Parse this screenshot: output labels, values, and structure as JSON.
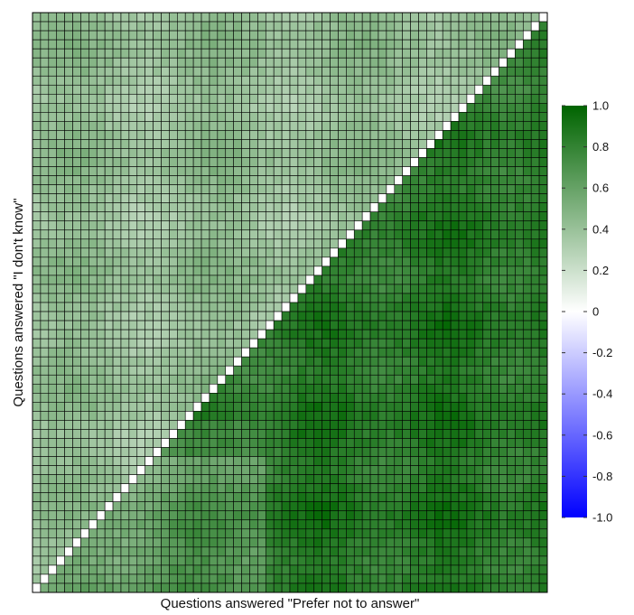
{
  "chart_data": {
    "type": "heatmap",
    "title": "",
    "xlabel": "Questions answered \"Prefer not to answer\"",
    "ylabel": "Questions answered \"I don't know\"",
    "n_rows": 64,
    "n_cols": 64,
    "diagonal_value": 0,
    "upper_triangle": {
      "description_value": "weak positive correlation",
      "typical_value": 0.4,
      "range": [
        0.2,
        0.55
      ]
    },
    "lower_triangle": {
      "typical_value": 0.85,
      "range": [
        0.45,
        1.0
      ]
    },
    "colorbar": {
      "min": -1.0,
      "max": 1.0,
      "ticks": [
        1.0,
        0.8,
        0.6,
        0.4,
        0.2,
        0,
        -0.2,
        -0.4,
        -0.6,
        -0.8,
        -1.0
      ],
      "tick_labels": [
        "1.0",
        "0.8",
        "0.6",
        "0.4",
        "0.2",
        "0",
        "-0.2",
        "-0.4",
        "-0.6",
        "-0.8",
        "-1.0"
      ],
      "colors": {
        "negative": "#0000ff",
        "zero": "#ffffff",
        "positive": "#006400"
      }
    },
    "grid": true
  }
}
